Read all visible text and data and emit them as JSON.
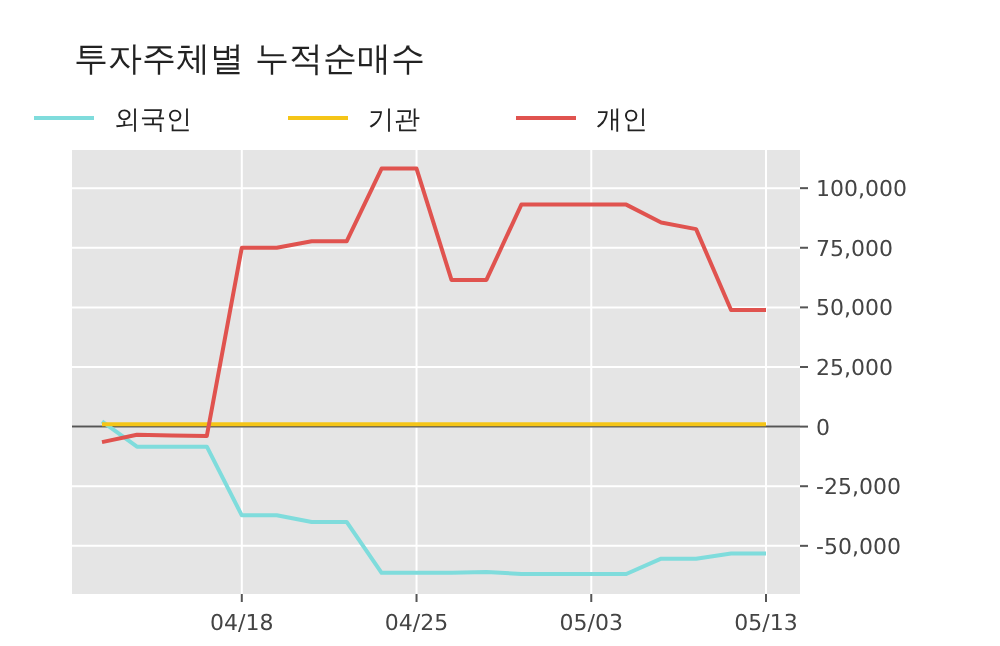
{
  "chart_data": {
    "type": "line",
    "title": "투자주체별 누적순매수",
    "categories": [
      null,
      null,
      null,
      null,
      "04/18",
      null,
      null,
      null,
      null,
      "04/25",
      null,
      null,
      null,
      null,
      "05/03",
      null,
      null,
      null,
      null,
      "05/13"
    ],
    "series": [
      {
        "name": "외국인",
        "color": "#7fdcdc",
        "values": [
          2200,
          -8400,
          -8400,
          -8400,
          -37200,
          -37200,
          -40000,
          -40000,
          -61300,
          -61300,
          -61300,
          -61000,
          -61800,
          -61800,
          -61800,
          -61800,
          -55400,
          -55400,
          -53200,
          -53200
        ]
      },
      {
        "name": "기관",
        "color": "#f5c518",
        "values": [
          1000,
          1000,
          1000,
          1000,
          1000,
          1000,
          1000,
          1000,
          1000,
          1000,
          1000,
          1000,
          1000,
          1000,
          1000,
          1000,
          1000,
          1000,
          1000,
          1000
        ]
      },
      {
        "name": "개인",
        "color": "#e0534f",
        "values": [
          -6500,
          -3400,
          -3700,
          -3900,
          75000,
          75000,
          77700,
          77700,
          108200,
          108200,
          61500,
          61500,
          93100,
          93100,
          93100,
          93100,
          85600,
          82800,
          48900,
          48900
        ]
      }
    ],
    "ylim": [
      -70200,
      116000
    ],
    "yticks": [
      {
        "value": -50000,
        "label": "-50,000"
      },
      {
        "value": -25000,
        "label": "-25,000"
      },
      0,
      {
        "value": 25000,
        "label": "25,000"
      },
      {
        "value": 50000,
        "label": "50,000"
      },
      {
        "value": 75000,
        "label": "75,000"
      },
      {
        "value": 100000,
        "label": "100,000"
      }
    ],
    "ref_lines": [
      {
        "axis": "y",
        "value": 0,
        "color": "#555555"
      }
    ],
    "grid": true,
    "legend": "top left",
    "marker": "none",
    "line_style": "solid"
  }
}
